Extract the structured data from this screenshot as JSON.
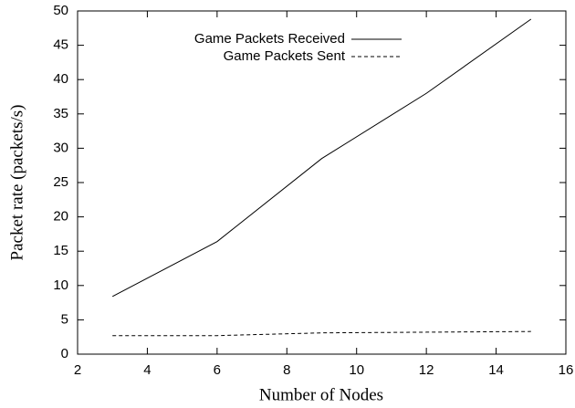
{
  "chart_data": {
    "type": "line",
    "x_label": "Number of Nodes",
    "y_label": "Packet rate (packets/s)",
    "x": [
      3,
      6,
      9,
      12,
      15
    ],
    "series": [
      {
        "name": "Game Packets Received",
        "color": "#000000",
        "style": "solid",
        "values": [
          8.4,
          16.4,
          28.5,
          38,
          48.8
        ]
      },
      {
        "name": "Game Packets Sent",
        "color": "#000000",
        "style": "dashed",
        "values": [
          2.7,
          2.7,
          3.1,
          3.2,
          3.3
        ]
      }
    ],
    "xlim": [
      2,
      16
    ],
    "xticks": [
      2,
      4,
      6,
      8,
      10,
      12,
      14,
      16
    ],
    "ylim": [
      0,
      50
    ],
    "yticks": [
      0,
      5,
      10,
      15,
      20,
      25,
      30,
      35,
      40,
      45,
      50
    ],
    "grid": false,
    "legend_position": "top"
  }
}
